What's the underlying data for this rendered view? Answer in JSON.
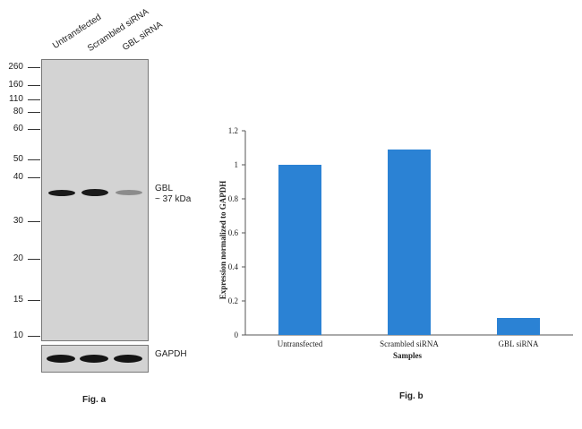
{
  "fig_a": {
    "lanes": [
      "Untransfected",
      "Scrambled siRNA",
      "GBL siRNA"
    ],
    "mw_markers": [
      "260",
      "160",
      "110",
      "80",
      "60",
      "50",
      "40",
      "30",
      "20",
      "15",
      "10"
    ],
    "target_label": "GBL",
    "target_size": "~ 37 kDa",
    "loading_control": "GAPDH",
    "caption": "Fig. a",
    "band_intensity": [
      1.0,
      1.0,
      0.35
    ]
  },
  "fig_b": {
    "caption": "Fig. b"
  },
  "chart_data": {
    "type": "bar",
    "categories": [
      "Untransfected",
      "Scrambled siRNA",
      "GBL siRNA"
    ],
    "values": [
      1.0,
      1.09,
      0.1
    ],
    "title": "",
    "xlabel": "Samples",
    "ylabel": "Expression normalized to GAPDH",
    "ylim": [
      0,
      1.2
    ],
    "yticks": [
      "0",
      "0.2",
      "0.4",
      "0.6",
      "0.8",
      "1",
      "1.2"
    ],
    "bar_color": "#2B82D4",
    "grid": false,
    "legend": "none"
  }
}
